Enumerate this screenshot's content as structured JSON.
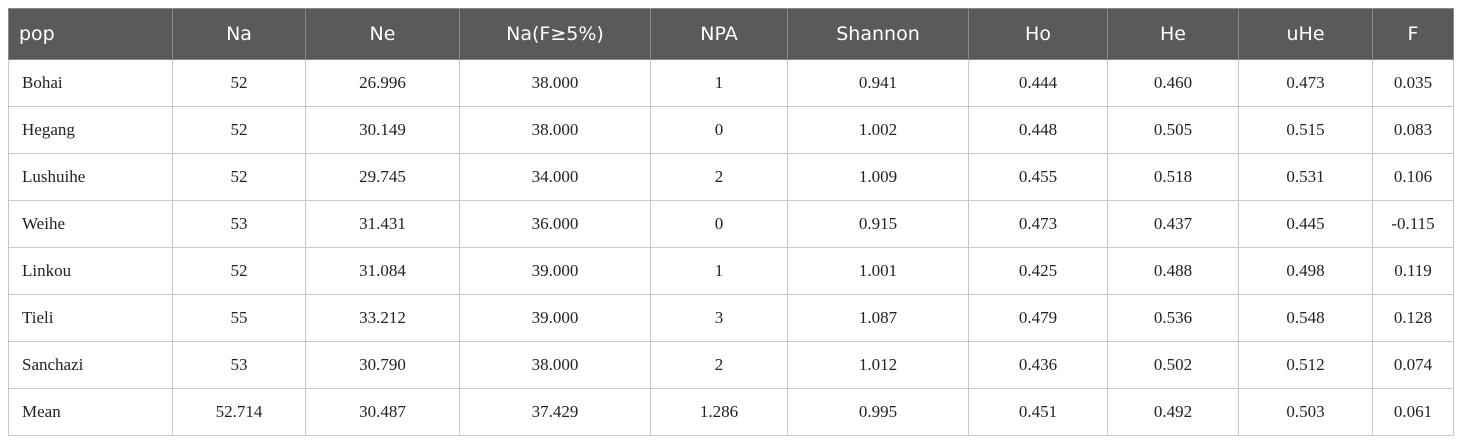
{
  "table": {
    "header": [
      "pop",
      "Na",
      "Ne",
      "Na(F≥5%)",
      "NPA",
      "Shannon",
      "Ho",
      "He",
      "uHe",
      "F"
    ],
    "rows": [
      [
        "Bohai",
        "52",
        "26.996",
        "38.000",
        "1",
        "0.941",
        "0.444",
        "0.460",
        "0.473",
        "0.035"
      ],
      [
        "Hegang",
        "52",
        "30.149",
        "38.000",
        "0",
        "1.002",
        "0.448",
        "0.505",
        "0.515",
        "0.083"
      ],
      [
        "Lushuihe",
        "52",
        "29.745",
        "34.000",
        "2",
        "1.009",
        "0.455",
        "0.518",
        "0.531",
        "0.106"
      ],
      [
        "Weihe",
        "53",
        "31.431",
        "36.000",
        "0",
        "0.915",
        "0.473",
        "0.437",
        "0.445",
        "-0.115"
      ],
      [
        "Linkou",
        "52",
        "31.084",
        "39.000",
        "1",
        "1.001",
        "0.425",
        "0.488",
        "0.498",
        "0.119"
      ],
      [
        "Tieli",
        "55",
        "33.212",
        "39.000",
        "3",
        "1.087",
        "0.479",
        "0.536",
        "0.548",
        "0.128"
      ],
      [
        "Sanchazi",
        "53",
        "30.790",
        "38.000",
        "2",
        "1.012",
        "0.436",
        "0.502",
        "0.512",
        "0.074"
      ],
      [
        "Mean",
        "52.714",
        "30.487",
        "37.429",
        "1.286",
        "0.995",
        "0.451",
        "0.492",
        "0.503",
        "0.061"
      ]
    ]
  }
}
